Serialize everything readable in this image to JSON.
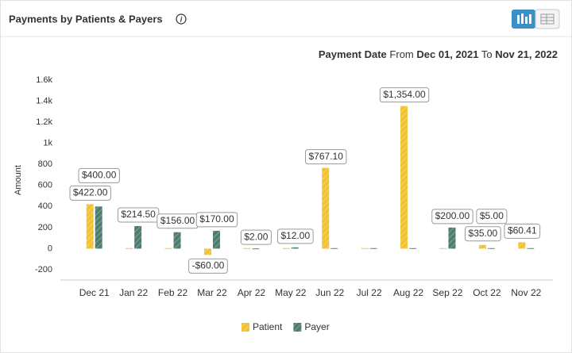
{
  "chart_data": {
    "type": "bar",
    "title": "Payments by Patients & Payers",
    "subtitle": [
      "Payment Date",
      "From",
      "Dec 01, 2021",
      "To",
      "Nov 21, 2022"
    ],
    "y_label": "Amount",
    "categories": [
      "Dec 21",
      "Jan 22",
      "Feb 22",
      "Mar 22",
      "Apr 22",
      "May 22",
      "Jun 22",
      "Jul 22",
      "Aug 22",
      "Sep 22",
      "Oct 22",
      "Nov 22"
    ],
    "series": [
      {
        "name": "Patient",
        "color": "#f2c230",
        "values": [
          422,
          5,
          5,
          -60,
          5,
          5,
          767.1,
          5,
          1354,
          5,
          35,
          60.41
        ],
        "value_labels": [
          "$422.00",
          null,
          null,
          "-$60.00",
          null,
          null,
          "$767.10",
          null,
          "$1,354.00",
          null,
          "$35.00",
          "$60.41"
        ]
      },
      {
        "name": "Payer",
        "color": "#4e7d70",
        "values": [
          400,
          214.5,
          156,
          170,
          2,
          12,
          5,
          5,
          5,
          200,
          5,
          5
        ],
        "value_labels": [
          "$400.00",
          "$214.50",
          "$156.00",
          "$170.00",
          "$2.00",
          "$12.00",
          null,
          null,
          null,
          "$200.00",
          "$5.00",
          null
        ]
      }
    ],
    "ylim": [
      -200,
      1600
    ],
    "yticks": [
      -200,
      0,
      200,
      400,
      600,
      800,
      {
        "value": 1000,
        "label": "1k"
      },
      {
        "value": 1200,
        "label": "1.2k"
      },
      {
        "value": 1400,
        "label": "1.4k"
      },
      {
        "value": 1600,
        "label": "1.6k"
      }
    ],
    "grid": false,
    "legend": "bottom"
  }
}
